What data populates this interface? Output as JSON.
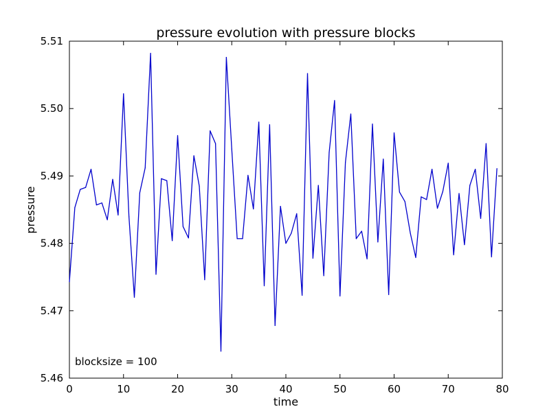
{
  "chart_data": {
    "type": "line",
    "title": "pressure evolution with pressure blocks",
    "xlabel": "time",
    "ylabel": "pressure",
    "annotation": "blocksize = 100",
    "xlim": [
      0,
      80
    ],
    "ylim": [
      5.46,
      5.51
    ],
    "grid": false,
    "line_color": "#0000cc",
    "x_ticks": [
      "0",
      "10",
      "20",
      "30",
      "40",
      "50",
      "60",
      "70",
      "80"
    ],
    "y_ticks": [
      "5.46",
      "5.47",
      "5.48",
      "5.49",
      "5.50",
      "5.51"
    ],
    "series": [
      {
        "x": [
          0,
          1,
          2,
          3,
          4,
          5,
          6,
          7,
          8,
          9,
          10,
          11,
          12,
          13,
          14,
          15,
          16,
          17,
          18,
          19,
          20,
          21,
          22,
          23,
          24,
          25,
          26,
          27,
          28,
          29,
          30,
          31,
          32,
          33,
          34,
          35,
          36,
          37,
          38,
          39,
          40,
          41,
          42,
          43,
          44,
          45,
          46,
          47,
          48,
          49,
          50,
          51,
          52,
          53,
          54,
          55,
          56,
          57,
          58,
          59,
          60,
          61,
          62,
          63,
          64,
          65,
          66,
          67,
          68,
          69,
          70,
          71,
          72,
          73,
          74,
          75,
          76,
          77,
          78,
          79
        ],
        "values": [
          5.4743,
          5.4853,
          5.488,
          5.4883,
          5.491,
          5.4857,
          5.486,
          5.4835,
          5.4895,
          5.4842,
          5.5022,
          5.484,
          5.472,
          5.4875,
          5.4912,
          5.5082,
          5.4754,
          5.4896,
          5.4893,
          5.4804,
          5.496,
          5.4825,
          5.4808,
          5.493,
          5.4885,
          5.4746,
          5.4967,
          5.4948,
          5.464,
          5.5076,
          5.494,
          5.4807,
          5.4807,
          5.4901,
          5.4851,
          5.498,
          5.4737,
          5.4976,
          5.4678,
          5.4855,
          5.48,
          5.4815,
          5.4844,
          5.4723,
          5.5052,
          5.4778,
          5.4886,
          5.4752,
          5.4935,
          5.5012,
          5.4722,
          5.492,
          5.4992,
          5.4807,
          5.4818,
          5.4777,
          5.4977,
          5.4802,
          5.4925,
          5.4724,
          5.4964,
          5.4876,
          5.4862,
          5.4815,
          5.4779,
          5.4869,
          5.4865,
          5.491,
          5.4852,
          5.4877,
          5.4919,
          5.4783,
          5.4874,
          5.4798,
          5.4886,
          5.491,
          5.4837,
          5.4948,
          5.478,
          5.4911
        ]
      }
    ]
  }
}
